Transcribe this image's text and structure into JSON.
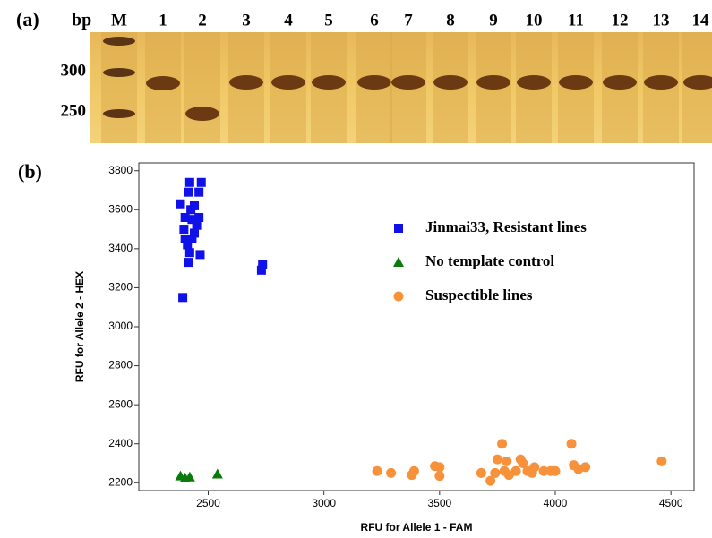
{
  "gel": {
    "panel_label": "(a)",
    "size_header": "bp",
    "lanes": [
      "M",
      "1",
      "2",
      "3",
      "4",
      "5",
      "6",
      "7",
      "8",
      "9",
      "10",
      "11",
      "12",
      "13",
      "14"
    ],
    "size_labels": [
      "300",
      "250"
    ]
  },
  "chart_data": {
    "type": "scatter",
    "panel_label": "(b)",
    "x_label": "RFU for Allele 1 - FAM",
    "y_label": "RFU for Allele 2 - HEX",
    "xlim": [
      2200,
      4600
    ],
    "ylim": [
      2160,
      3840
    ],
    "xticks": [
      2500,
      3000,
      3500,
      4000,
      4500
    ],
    "yticks": [
      2200,
      2400,
      2600,
      2800,
      3000,
      3200,
      3400,
      3600,
      3800
    ],
    "legend": "upper right",
    "series": [
      {
        "name": "Jinmai33, Resistant lines",
        "color": "#1010e8",
        "marker": "square",
        "x": [
          2380,
          2395,
          2400,
          2410,
          2420,
          2415,
          2425,
          2430,
          2440,
          2450,
          2460,
          2440,
          2420,
          2460,
          2470,
          2465,
          2415,
          2390,
          2430,
          2400,
          2730,
          2735
        ],
        "values": [
          3630,
          3500,
          3450,
          3420,
          3740,
          3690,
          3600,
          3550,
          3620,
          3520,
          3560,
          3480,
          3380,
          3690,
          3740,
          3370,
          3330,
          3150,
          3450,
          3560,
          3290,
          3320
        ]
      },
      {
        "name": "No template  control",
        "color": "#0b7a0b",
        "marker": "triangle",
        "x": [
          2380,
          2400,
          2420,
          2540
        ],
        "values": [
          2235,
          2225,
          2230,
          2245
        ]
      },
      {
        "name": "Suspectible lines",
        "color": "#f7913a",
        "marker": "circle",
        "x": [
          3230,
          3290,
          3380,
          3390,
          3480,
          3500,
          3500,
          3680,
          3720,
          3740,
          3750,
          3770,
          3780,
          3790,
          3800,
          3830,
          3850,
          3860,
          3880,
          3900,
          3910,
          3950,
          3980,
          4000,
          4070,
          4080,
          4100,
          4130,
          4460
        ],
        "values": [
          2260,
          2250,
          2240,
          2260,
          2285,
          2280,
          2235,
          2250,
          2210,
          2250,
          2320,
          2400,
          2260,
          2310,
          2240,
          2260,
          2320,
          2300,
          2260,
          2250,
          2280,
          2260,
          2260,
          2260,
          2400,
          2290,
          2270,
          2280,
          2310
        ]
      }
    ]
  }
}
